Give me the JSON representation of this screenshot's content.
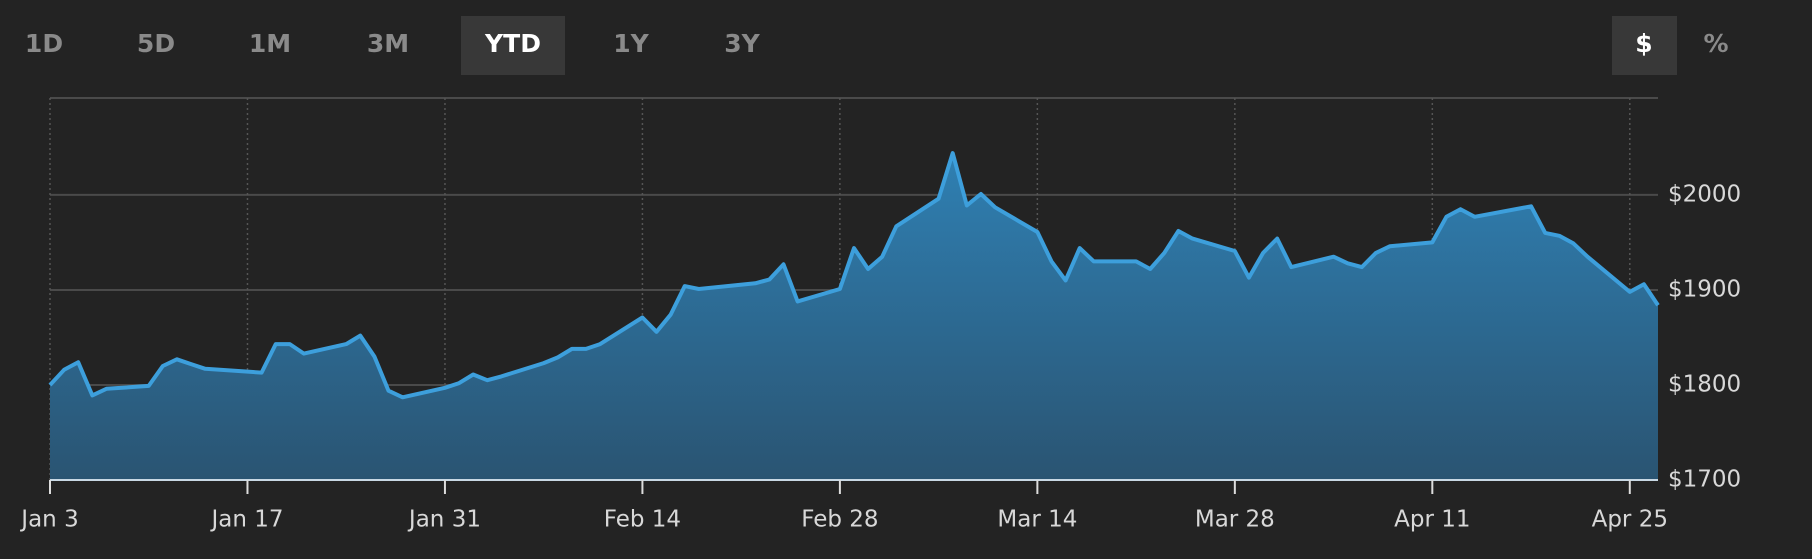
{
  "toolbar": {
    "ranges": [
      "1D",
      "5D",
      "1M",
      "3M",
      "YTD",
      "1Y",
      "3Y"
    ],
    "active_range": 4,
    "units": [
      "$",
      "%"
    ],
    "active_unit": 0
  },
  "chart_data": {
    "type": "area",
    "x": [
      3,
      4,
      5,
      6,
      7,
      10,
      11,
      12,
      13,
      14,
      18,
      19,
      20,
      21,
      24,
      25,
      26,
      27,
      28,
      31,
      32,
      33,
      34,
      35,
      38,
      39,
      40,
      41,
      42,
      45,
      46,
      47,
      48,
      49,
      53,
      54,
      55,
      56,
      59,
      60,
      61,
      62,
      63,
      66,
      67,
      68,
      69,
      70,
      73,
      74,
      75,
      76,
      77,
      80,
      81,
      82,
      83,
      84,
      87,
      88,
      89,
      90,
      91,
      94,
      95,
      96,
      97,
      98,
      101,
      102,
      103,
      104,
      108,
      109,
      110,
      111,
      112,
      115,
      116,
      117
    ],
    "values": [
      1800,
      1816,
      1824,
      1789,
      1796,
      1799,
      1820,
      1827,
      1822,
      1817,
      1813,
      1843,
      1843,
      1833,
      1843,
      1852,
      1830,
      1794,
      1787,
      1797,
      1802,
      1811,
      1805,
      1809,
      1823,
      1829,
      1838,
      1838,
      1843,
      1871,
      1856,
      1874,
      1904,
      1901,
      1907,
      1911,
      1927,
      1888,
      1901,
      1944,
      1922,
      1935,
      1967,
      1996,
      2044,
      1989,
      2001,
      1987,
      1961,
      1930,
      1910,
      1944,
      1930,
      1930,
      1922,
      1939,
      1962,
      1954,
      1941,
      1913,
      1939,
      1954,
      1924,
      1935,
      1928,
      1924,
      1939,
      1946,
      1950,
      1977,
      1985,
      1977,
      1988,
      1960,
      1957,
      1949,
      1935,
      1898,
      1906,
      1884
    ],
    "color": "#3d9fdc",
    "xlim": [
      3,
      117
    ],
    "xticks": [
      {
        "value": 3,
        "label": "Jan 3"
      },
      {
        "value": 17,
        "label": "Jan 17"
      },
      {
        "value": 31,
        "label": "Jan 31"
      },
      {
        "value": 45,
        "label": "Feb 14"
      },
      {
        "value": 59,
        "label": "Feb 28"
      },
      {
        "value": 73,
        "label": "Mar 14"
      },
      {
        "value": 87,
        "label": "Mar 28"
      },
      {
        "value": 101,
        "label": "Apr 11"
      },
      {
        "value": 115,
        "label": "Apr 25"
      }
    ],
    "ylim": [
      1700,
      2102
    ],
    "yticks": [
      {
        "value": 1700,
        "label": "$1700"
      },
      {
        "value": 1800,
        "label": "$1800"
      },
      {
        "value": 1900,
        "label": "$1900"
      },
      {
        "value": 2000,
        "label": "$2000"
      }
    ],
    "grid": true
  }
}
